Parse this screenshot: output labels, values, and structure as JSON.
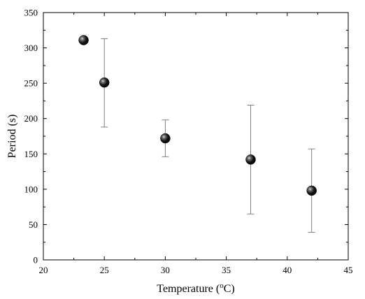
{
  "chart_data": {
    "type": "scatter",
    "title": "",
    "xlabel": "Temperature (°C)",
    "xlabel_parts": {
      "prefix": "Temperature (",
      "superscript": "o",
      "suffix": "C)"
    },
    "ylabel": "Period (s)",
    "xlim": [
      20,
      45
    ],
    "ylim": [
      0,
      350
    ],
    "xticks": [
      20,
      25,
      30,
      35,
      40,
      45
    ],
    "yticks": [
      0,
      50,
      100,
      150,
      200,
      250,
      300,
      350
    ],
    "grid": false,
    "legend": "none",
    "marker_color": "#000000",
    "errorbar_color": "#808080",
    "series": [
      {
        "points": [
          {
            "x": 23.3,
            "y": 311,
            "err_low": null,
            "err_high": null
          },
          {
            "x": 25,
            "y": 251,
            "err_low": 188,
            "err_high": 313
          },
          {
            "x": 30,
            "y": 172,
            "err_low": 146,
            "err_high": 198
          },
          {
            "x": 37,
            "y": 142,
            "err_low": 65,
            "err_high": 219
          },
          {
            "x": 42,
            "y": 98,
            "err_low": 39,
            "err_high": 157
          }
        ]
      }
    ]
  }
}
